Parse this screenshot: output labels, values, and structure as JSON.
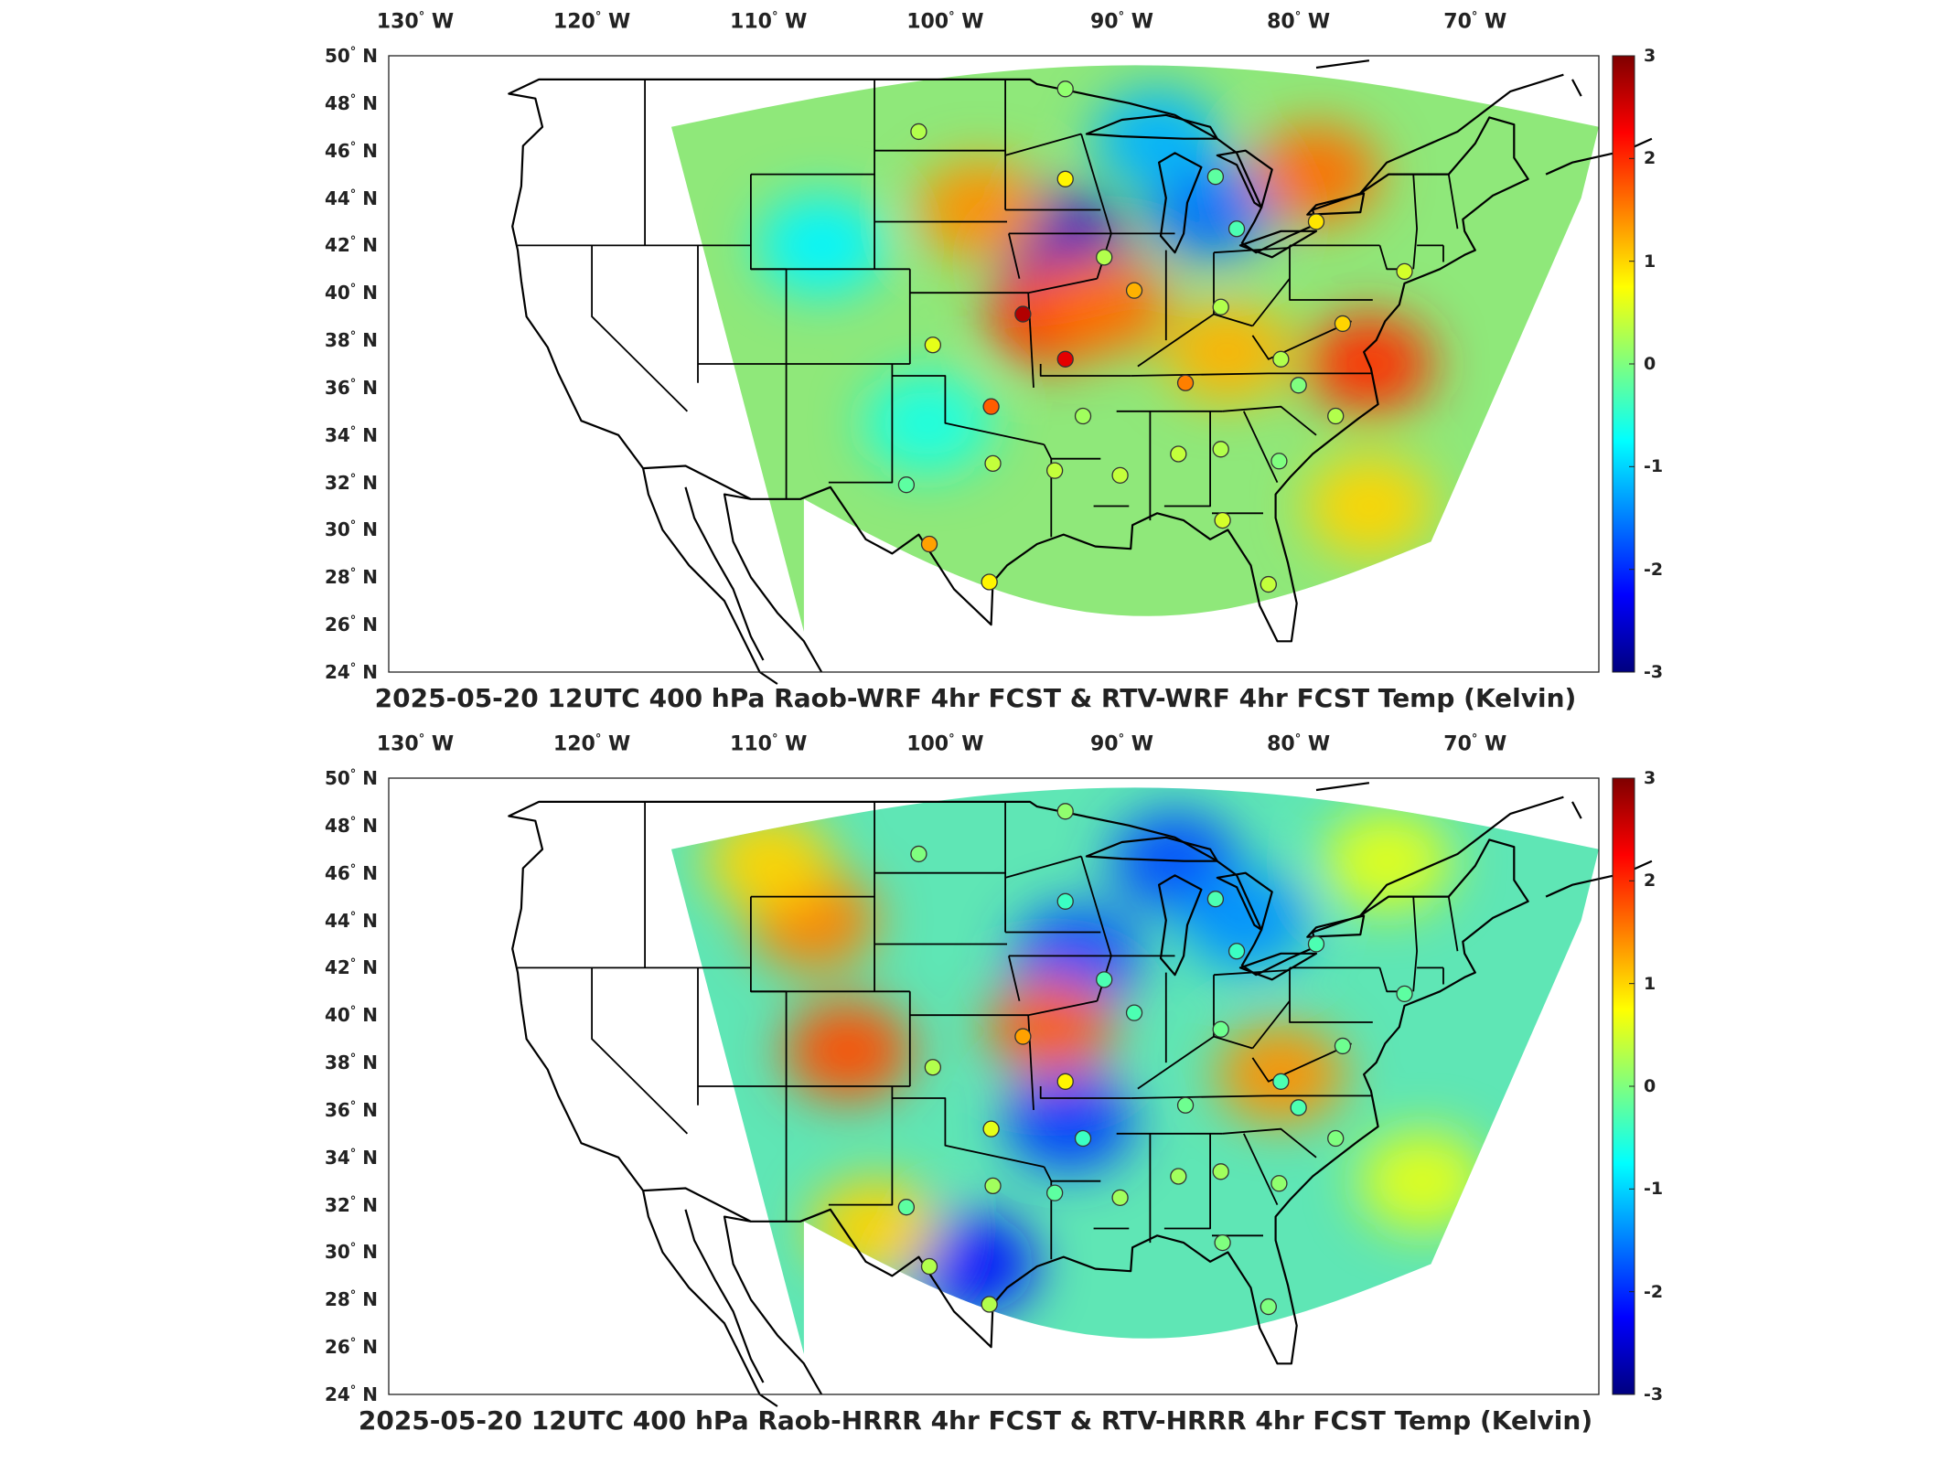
{
  "lon_labels": [
    {
      "deg": "130",
      "hemi": "W"
    },
    {
      "deg": "120",
      "hemi": "W"
    },
    {
      "deg": "110",
      "hemi": "W"
    },
    {
      "deg": "100",
      "hemi": "W"
    },
    {
      "deg": "90",
      "hemi": "W"
    },
    {
      "deg": "80",
      "hemi": "W"
    },
    {
      "deg": "70",
      "hemi": "W"
    }
  ],
  "lat_labels": [
    {
      "deg": "50",
      "hemi": "N"
    },
    {
      "deg": "48",
      "hemi": "N"
    },
    {
      "deg": "46",
      "hemi": "N"
    },
    {
      "deg": "44",
      "hemi": "N"
    },
    {
      "deg": "42",
      "hemi": "N"
    },
    {
      "deg": "40",
      "hemi": "N"
    },
    {
      "deg": "38",
      "hemi": "N"
    },
    {
      "deg": "36",
      "hemi": "N"
    },
    {
      "deg": "34",
      "hemi": "N"
    },
    {
      "deg": "32",
      "hemi": "N"
    },
    {
      "deg": "30",
      "hemi": "N"
    },
    {
      "deg": "28",
      "hemi": "N"
    },
    {
      "deg": "26",
      "hemi": "N"
    },
    {
      "deg": "24",
      "hemi": "N"
    }
  ],
  "colorbar": {
    "ticks": [
      "3",
      "2",
      "1",
      "0",
      "-1",
      "-2",
      "-3"
    ],
    "range": [
      -3,
      3
    ],
    "colors": [
      "#00007f",
      "#0000ff",
      "#007fff",
      "#00ffff",
      "#7fff7f",
      "#ffff00",
      "#ff7f00",
      "#ff0000",
      "#7f0000"
    ]
  },
  "panels": [
    {
      "title": "2025-05-20 12UTC 400 hPa Raob-WRF 4hr FCST & RTV-WRF 4hr FCST Temp (Kelvin)",
      "field_base": "#8fe87a",
      "anomalies": [
        {
          "lon": -93.5,
          "lat": 42.2,
          "value": -2.6
        },
        {
          "lon": -85.0,
          "lat": 43.5,
          "value": -1.6
        },
        {
          "lon": -88.0,
          "lat": 46.5,
          "value": -1.2
        },
        {
          "lon": -94.0,
          "lat": 39.0,
          "value": 2.0
        },
        {
          "lon": -91.0,
          "lat": 39.5,
          "value": 1.6
        },
        {
          "lon": -76.0,
          "lat": 37.0,
          "value": 2.0
        },
        {
          "lon": -79.0,
          "lat": 45.0,
          "value": 1.6
        },
        {
          "lon": -98.0,
          "lat": 43.5,
          "value": 1.4
        },
        {
          "lon": -84.0,
          "lat": 37.5,
          "value": 1.2
        },
        {
          "lon": -107.0,
          "lat": 42.0,
          "value": -0.8
        },
        {
          "lon": -101.0,
          "lat": 34.5,
          "value": -0.6
        },
        {
          "lon": -76.0,
          "lat": 31.0,
          "value": 1.0
        }
      ],
      "stations": [
        {
          "lon": -101.5,
          "lat": 46.8,
          "value": 0.3
        },
        {
          "lon": -93.2,
          "lat": 44.8,
          "value": 0.8
        },
        {
          "lon": -93.2,
          "lat": 48.6,
          "value": 0.1
        },
        {
          "lon": -84.7,
          "lat": 44.9,
          "value": -0.2
        },
        {
          "lon": -83.5,
          "lat": 42.7,
          "value": -0.3
        },
        {
          "lon": -79.0,
          "lat": 43.0,
          "value": 0.9
        },
        {
          "lon": -91.0,
          "lat": 41.5,
          "value": 0.3
        },
        {
          "lon": -89.3,
          "lat": 40.1,
          "value": 1.2
        },
        {
          "lon": -95.6,
          "lat": 39.1,
          "value": 2.7
        },
        {
          "lon": -93.2,
          "lat": 37.2,
          "value": 2.4
        },
        {
          "lon": -100.7,
          "lat": 37.8,
          "value": 0.6
        },
        {
          "lon": -86.4,
          "lat": 36.2,
          "value": 1.5
        },
        {
          "lon": -84.4,
          "lat": 39.4,
          "value": 0.3
        },
        {
          "lon": -81.0,
          "lat": 37.2,
          "value": 0.3
        },
        {
          "lon": -80.0,
          "lat": 36.1,
          "value": 0.0
        },
        {
          "lon": -77.5,
          "lat": 38.7,
          "value": 1.0
        },
        {
          "lon": -74.0,
          "lat": 40.9,
          "value": 0.5
        },
        {
          "lon": -97.4,
          "lat": 35.2,
          "value": 1.7
        },
        {
          "lon": -92.2,
          "lat": 34.8,
          "value": 0.2
        },
        {
          "lon": -97.3,
          "lat": 32.8,
          "value": 0.4
        },
        {
          "lon": -93.8,
          "lat": 32.5,
          "value": 0.4
        },
        {
          "lon": -90.1,
          "lat": 32.3,
          "value": 0.4
        },
        {
          "lon": -86.8,
          "lat": 33.2,
          "value": 0.4
        },
        {
          "lon": -84.4,
          "lat": 33.4,
          "value": 0.3
        },
        {
          "lon": -81.1,
          "lat": 32.9,
          "value": 0.0
        },
        {
          "lon": -77.9,
          "lat": 34.8,
          "value": 0.3
        },
        {
          "lon": -102.2,
          "lat": 31.9,
          "value": -0.2
        },
        {
          "lon": -100.9,
          "lat": 29.4,
          "value": 1.3
        },
        {
          "lon": -97.5,
          "lat": 27.8,
          "value": 0.8
        },
        {
          "lon": -84.3,
          "lat": 30.4,
          "value": 0.5
        },
        {
          "lon": -81.7,
          "lat": 27.7,
          "value": 0.4
        }
      ]
    },
    {
      "title": "2025-05-20 12UTC 400 hPa Raob-HRRR 4hr FCST & RTV-HRRR 4hr FCST Temp (Kelvin)",
      "field_base": "#5fe6b5",
      "anomalies": [
        {
          "lon": -92.5,
          "lat": 42.5,
          "value": -1.8
        },
        {
          "lon": -93.0,
          "lat": 35.5,
          "value": -1.9
        },
        {
          "lon": -87.0,
          "lat": 46.5,
          "value": -1.8
        },
        {
          "lon": -83.0,
          "lat": 44.0,
          "value": -1.4
        },
        {
          "lon": -98.5,
          "lat": 29.5,
          "value": -2.2
        },
        {
          "lon": -105.5,
          "lat": 38.5,
          "value": 1.8
        },
        {
          "lon": -107.5,
          "lat": 44.0,
          "value": 1.5
        },
        {
          "lon": -94.0,
          "lat": 39.5,
          "value": 1.7
        },
        {
          "lon": -81.0,
          "lat": 37.5,
          "value": 1.4
        },
        {
          "lon": -110.0,
          "lat": 46.5,
          "value": 1.0
        },
        {
          "lon": -104.0,
          "lat": 31.0,
          "value": 1.0
        },
        {
          "lon": -73.0,
          "lat": 33.0,
          "value": 0.6
        },
        {
          "lon": -75.0,
          "lat": 46.5,
          "value": 0.6
        }
      ],
      "stations": [
        {
          "lon": -101.5,
          "lat": 46.8,
          "value": 0.0
        },
        {
          "lon": -93.2,
          "lat": 44.8,
          "value": -0.4
        },
        {
          "lon": -93.2,
          "lat": 48.6,
          "value": 0.1
        },
        {
          "lon": -84.7,
          "lat": 44.9,
          "value": -0.3
        },
        {
          "lon": -83.5,
          "lat": 42.7,
          "value": -0.4
        },
        {
          "lon": -79.0,
          "lat": 43.0,
          "value": -0.3
        },
        {
          "lon": -91.0,
          "lat": 41.5,
          "value": -0.3
        },
        {
          "lon": -89.3,
          "lat": 40.1,
          "value": -0.3
        },
        {
          "lon": -95.6,
          "lat": 39.1,
          "value": 1.3
        },
        {
          "lon": -93.2,
          "lat": 37.2,
          "value": 0.8
        },
        {
          "lon": -100.7,
          "lat": 37.8,
          "value": 0.3
        },
        {
          "lon": -86.4,
          "lat": 36.2,
          "value": -0.1
        },
        {
          "lon": -84.4,
          "lat": 39.4,
          "value": -0.1
        },
        {
          "lon": -81.0,
          "lat": 37.2,
          "value": -0.3
        },
        {
          "lon": -80.0,
          "lat": 36.1,
          "value": -0.3
        },
        {
          "lon": -77.5,
          "lat": 38.7,
          "value": -0.1
        },
        {
          "lon": -74.0,
          "lat": 40.9,
          "value": -0.2
        },
        {
          "lon": -97.4,
          "lat": 35.2,
          "value": 0.6
        },
        {
          "lon": -92.2,
          "lat": 34.8,
          "value": -0.4
        },
        {
          "lon": -97.3,
          "lat": 32.8,
          "value": 0.2
        },
        {
          "lon": -93.8,
          "lat": 32.5,
          "value": -0.2
        },
        {
          "lon": -90.1,
          "lat": 32.3,
          "value": 0.2
        },
        {
          "lon": -86.8,
          "lat": 33.2,
          "value": 0.2
        },
        {
          "lon": -84.4,
          "lat": 33.4,
          "value": 0.2
        },
        {
          "lon": -81.1,
          "lat": 32.9,
          "value": 0.1
        },
        {
          "lon": -77.9,
          "lat": 34.8,
          "value": 0.0
        },
        {
          "lon": -102.2,
          "lat": 31.9,
          "value": -0.2
        },
        {
          "lon": -100.9,
          "lat": 29.4,
          "value": 0.3
        },
        {
          "lon": -97.5,
          "lat": 27.8,
          "value": 0.3
        },
        {
          "lon": -84.3,
          "lat": 30.4,
          "value": 0.0
        },
        {
          "lon": -81.7,
          "lat": 27.7,
          "value": 0.0
        }
      ]
    }
  ]
}
